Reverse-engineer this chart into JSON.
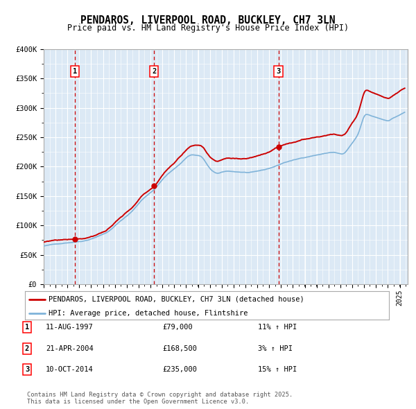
{
  "title": "PENDAROS, LIVERPOOL ROAD, BUCKLEY, CH7 3LN",
  "subtitle": "Price paid vs. HM Land Registry's House Price Index (HPI)",
  "ylim": [
    0,
    400000
  ],
  "yticks": [
    0,
    50000,
    100000,
    150000,
    200000,
    250000,
    300000,
    350000,
    400000
  ],
  "ytick_labels": [
    "£0",
    "£50K",
    "£100K",
    "£150K",
    "£200K",
    "£250K",
    "£300K",
    "£350K",
    "£400K"
  ],
  "bg_color": "#dce9f5",
  "grid_color": "#ffffff",
  "hpi_color": "#7fb3d9",
  "price_color": "#cc0000",
  "vline_color": "#cc0000",
  "purchases": [
    {
      "num": 1,
      "date": "11-AUG-1997",
      "price": 79000,
      "hpi_pct": "11% ↑ HPI"
    },
    {
      "num": 2,
      "date": "21-APR-2004",
      "price": 168500,
      "hpi_pct": "3% ↑ HPI"
    },
    {
      "num": 3,
      "date": "10-OCT-2014",
      "price": 235000,
      "hpi_pct": "15% ↑ HPI"
    }
  ],
  "legend_entries": [
    "PENDAROS, LIVERPOOL ROAD, BUCKLEY, CH7 3LN (detached house)",
    "HPI: Average price, detached house, Flintshire"
  ],
  "footer": "Contains HM Land Registry data © Crown copyright and database right 2025.\nThis data is licensed under the Open Government Licence v3.0."
}
